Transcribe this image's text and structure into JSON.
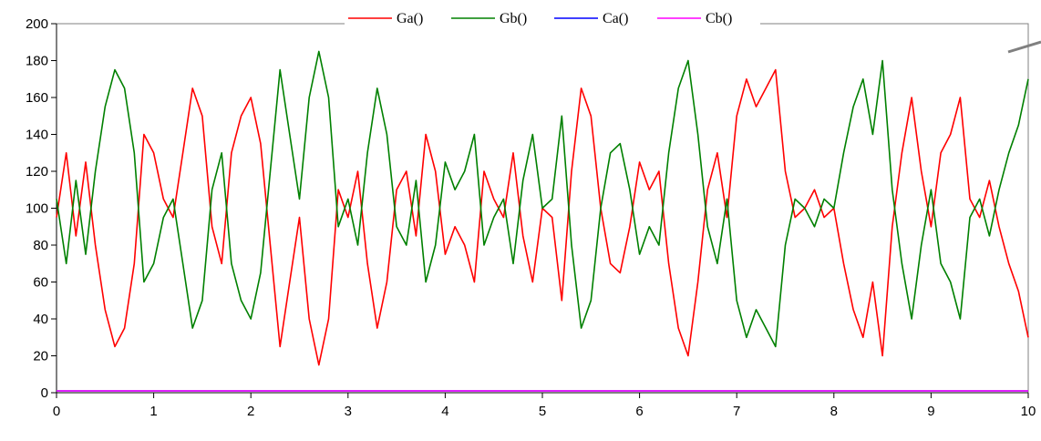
{
  "chart_data": {
    "type": "line",
    "title": "",
    "xlabel": "",
    "ylabel": "",
    "xlim": [
      0,
      10
    ],
    "ylim": [
      0,
      200
    ],
    "x_ticks": [
      "0",
      "1",
      "2",
      "3",
      "4",
      "5",
      "6",
      "7",
      "8",
      "9",
      "10"
    ],
    "y_ticks": [
      "0",
      "20",
      "40",
      "60",
      "80",
      "100",
      "120",
      "140",
      "160",
      "180",
      "200"
    ],
    "grid": false,
    "legend_position": "top-right",
    "x": [
      0,
      0.1,
      0.2,
      0.3,
      0.4,
      0.5,
      0.6,
      0.7,
      0.8,
      0.9,
      1.0,
      1.1,
      1.2,
      1.3,
      1.4,
      1.5,
      1.6,
      1.7,
      1.8,
      1.9,
      2.0,
      2.1,
      2.2,
      2.3,
      2.4,
      2.5,
      2.6,
      2.7,
      2.8,
      2.9,
      3.0,
      3.1,
      3.2,
      3.3,
      3.4,
      3.5,
      3.6,
      3.7,
      3.8,
      3.9,
      4.0,
      4.1,
      4.2,
      4.3,
      4.4,
      4.5,
      4.6,
      4.7,
      4.8,
      4.9,
      5.0,
      5.1,
      5.2,
      5.3,
      5.4,
      5.5,
      5.6,
      5.7,
      5.8,
      5.9,
      6.0,
      6.1,
      6.2,
      6.3,
      6.4,
      6.5,
      6.6,
      6.7,
      6.8,
      6.9,
      7.0,
      7.1,
      7.2,
      7.3,
      7.4,
      7.5,
      7.6,
      7.7,
      7.8,
      7.9,
      8.0,
      8.1,
      8.2,
      8.3,
      8.4,
      8.5,
      8.6,
      8.7,
      8.8,
      8.9,
      9.0,
      9.1,
      9.2,
      9.3,
      9.4,
      9.5,
      9.6,
      9.7,
      9.8,
      9.9,
      10.0
    ],
    "series": [
      {
        "name": "Ga()",
        "color": "#ff0000",
        "values": [
          95,
          130,
          85,
          125,
          80,
          45,
          25,
          35,
          70,
          140,
          130,
          105,
          95,
          130,
          165,
          150,
          90,
          70,
          130,
          150,
          160,
          135,
          80,
          25,
          60,
          95,
          40,
          15,
          40,
          110,
          95,
          120,
          70,
          35,
          60,
          110,
          120,
          85,
          140,
          120,
          75,
          90,
          80,
          60,
          120,
          105,
          95,
          130,
          85,
          60,
          100,
          95,
          50,
          120,
          165,
          150,
          100,
          70,
          65,
          90,
          125,
          110,
          120,
          70,
          35,
          20,
          60,
          110,
          130,
          95,
          150,
          170,
          155,
          165,
          175,
          120,
          95,
          100,
          110,
          95,
          100,
          70,
          45,
          30,
          60,
          20,
          90,
          130,
          160,
          120,
          90,
          130,
          140,
          160,
          105,
          95,
          115,
          90,
          70,
          55,
          30
        ]
      },
      {
        "name": "Gb()",
        "color": "#008000",
        "values": [
          105,
          70,
          115,
          75,
          120,
          155,
          175,
          165,
          130,
          60,
          70,
          95,
          105,
          70,
          35,
          50,
          110,
          130,
          70,
          50,
          40,
          65,
          120,
          175,
          140,
          105,
          160,
          185,
          160,
          90,
          105,
          80,
          130,
          165,
          140,
          90,
          80,
          115,
          60,
          80,
          125,
          110,
          120,
          140,
          80,
          95,
          105,
          70,
          115,
          140,
          100,
          105,
          150,
          80,
          35,
          50,
          100,
          130,
          135,
          110,
          75,
          90,
          80,
          130,
          165,
          180,
          140,
          90,
          70,
          105,
          50,
          30,
          45,
          35,
          25,
          80,
          105,
          100,
          90,
          105,
          100,
          130,
          155,
          170,
          140,
          180,
          110,
          70,
          40,
          80,
          110,
          70,
          60,
          40,
          95,
          105,
          85,
          110,
          130,
          145,
          170
        ]
      },
      {
        "name": "Ca()",
        "color": "#0000ff",
        "values": [
          1,
          1,
          1,
          1,
          1,
          1,
          1,
          1,
          1,
          1,
          1,
          1,
          1,
          1,
          1,
          1,
          1,
          1,
          1,
          1,
          1,
          1,
          1,
          1,
          1,
          1,
          1,
          1,
          1,
          1,
          1,
          1,
          1,
          1,
          1,
          1,
          1,
          1,
          1,
          1,
          1,
          1,
          1,
          1,
          1,
          1,
          1,
          1,
          1,
          1,
          1,
          1,
          1,
          1,
          1,
          1,
          1,
          1,
          1,
          1,
          1,
          1,
          1,
          1,
          1,
          1,
          1,
          1,
          1,
          1,
          1,
          1,
          1,
          1,
          1,
          1,
          1,
          1,
          1,
          1,
          1,
          1,
          1,
          1,
          1,
          1,
          1,
          1,
          1,
          1,
          1,
          1,
          1,
          1,
          1,
          1,
          1,
          1,
          1,
          1,
          1
        ]
      },
      {
        "name": "Cb()",
        "color": "#ff00ff",
        "values": [
          1,
          1,
          1,
          1,
          1,
          1,
          1,
          1,
          1,
          1,
          1,
          1,
          1,
          1,
          1,
          1,
          1,
          1,
          1,
          1,
          1,
          1,
          1,
          1,
          1,
          1,
          1,
          1,
          1,
          1,
          1,
          1,
          1,
          1,
          1,
          1,
          1,
          1,
          1,
          1,
          1,
          1,
          1,
          1,
          1,
          1,
          1,
          1,
          1,
          1,
          1,
          1,
          1,
          1,
          1,
          1,
          1,
          1,
          1,
          1,
          1,
          1,
          1,
          1,
          1,
          1,
          1,
          1,
          1,
          1,
          1,
          1,
          1,
          1,
          1,
          1,
          1,
          1,
          1,
          1,
          1,
          1,
          1,
          1,
          1,
          1,
          1,
          1,
          1,
          1,
          1,
          1,
          1,
          1,
          1,
          1,
          1,
          1,
          1,
          1,
          1
        ]
      }
    ]
  }
}
